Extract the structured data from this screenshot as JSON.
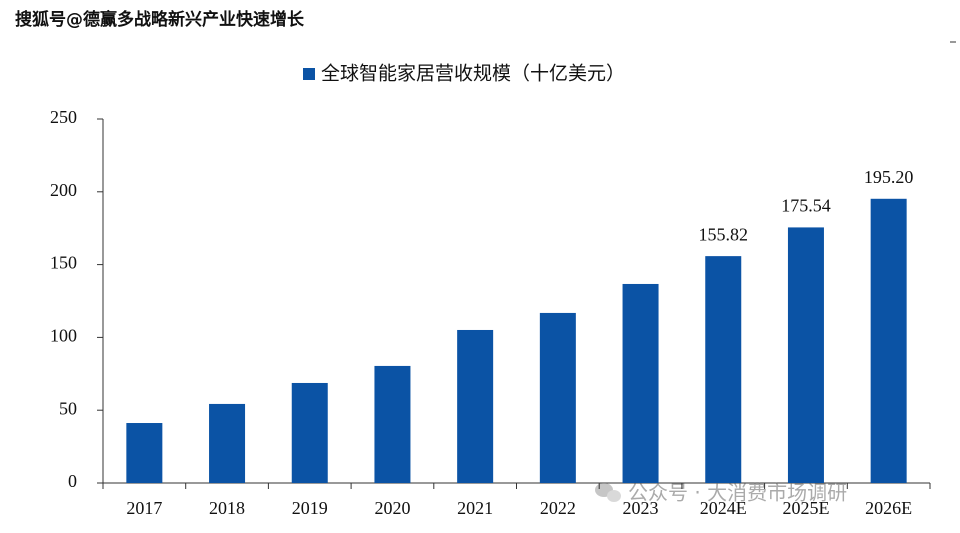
{
  "header": {
    "title": "搜狐号@德赢多战略新兴产业快速增长"
  },
  "watermark": "公众号 · 大消费市场调研",
  "chart_data": {
    "type": "bar",
    "categories": [
      "2017",
      "2018",
      "2019",
      "2020",
      "2021",
      "2022",
      "2023",
      "2024E",
      "2025E",
      "2026E"
    ],
    "series": [
      {
        "name": "全球智能家居营收规模（十亿美元）",
        "color": "#0b53a5",
        "values": [
          41.2,
          54.3,
          68.7,
          80.4,
          105.1,
          116.8,
          136.7,
          155.82,
          175.54,
          195.2
        ],
        "value_labels": [
          null,
          null,
          null,
          null,
          null,
          null,
          null,
          "155.82",
          "175.54",
          "195.20"
        ]
      }
    ],
    "ylim": [
      0,
      250
    ],
    "yticks": [
      0,
      50,
      100,
      150,
      200,
      250
    ],
    "legend": "top"
  }
}
